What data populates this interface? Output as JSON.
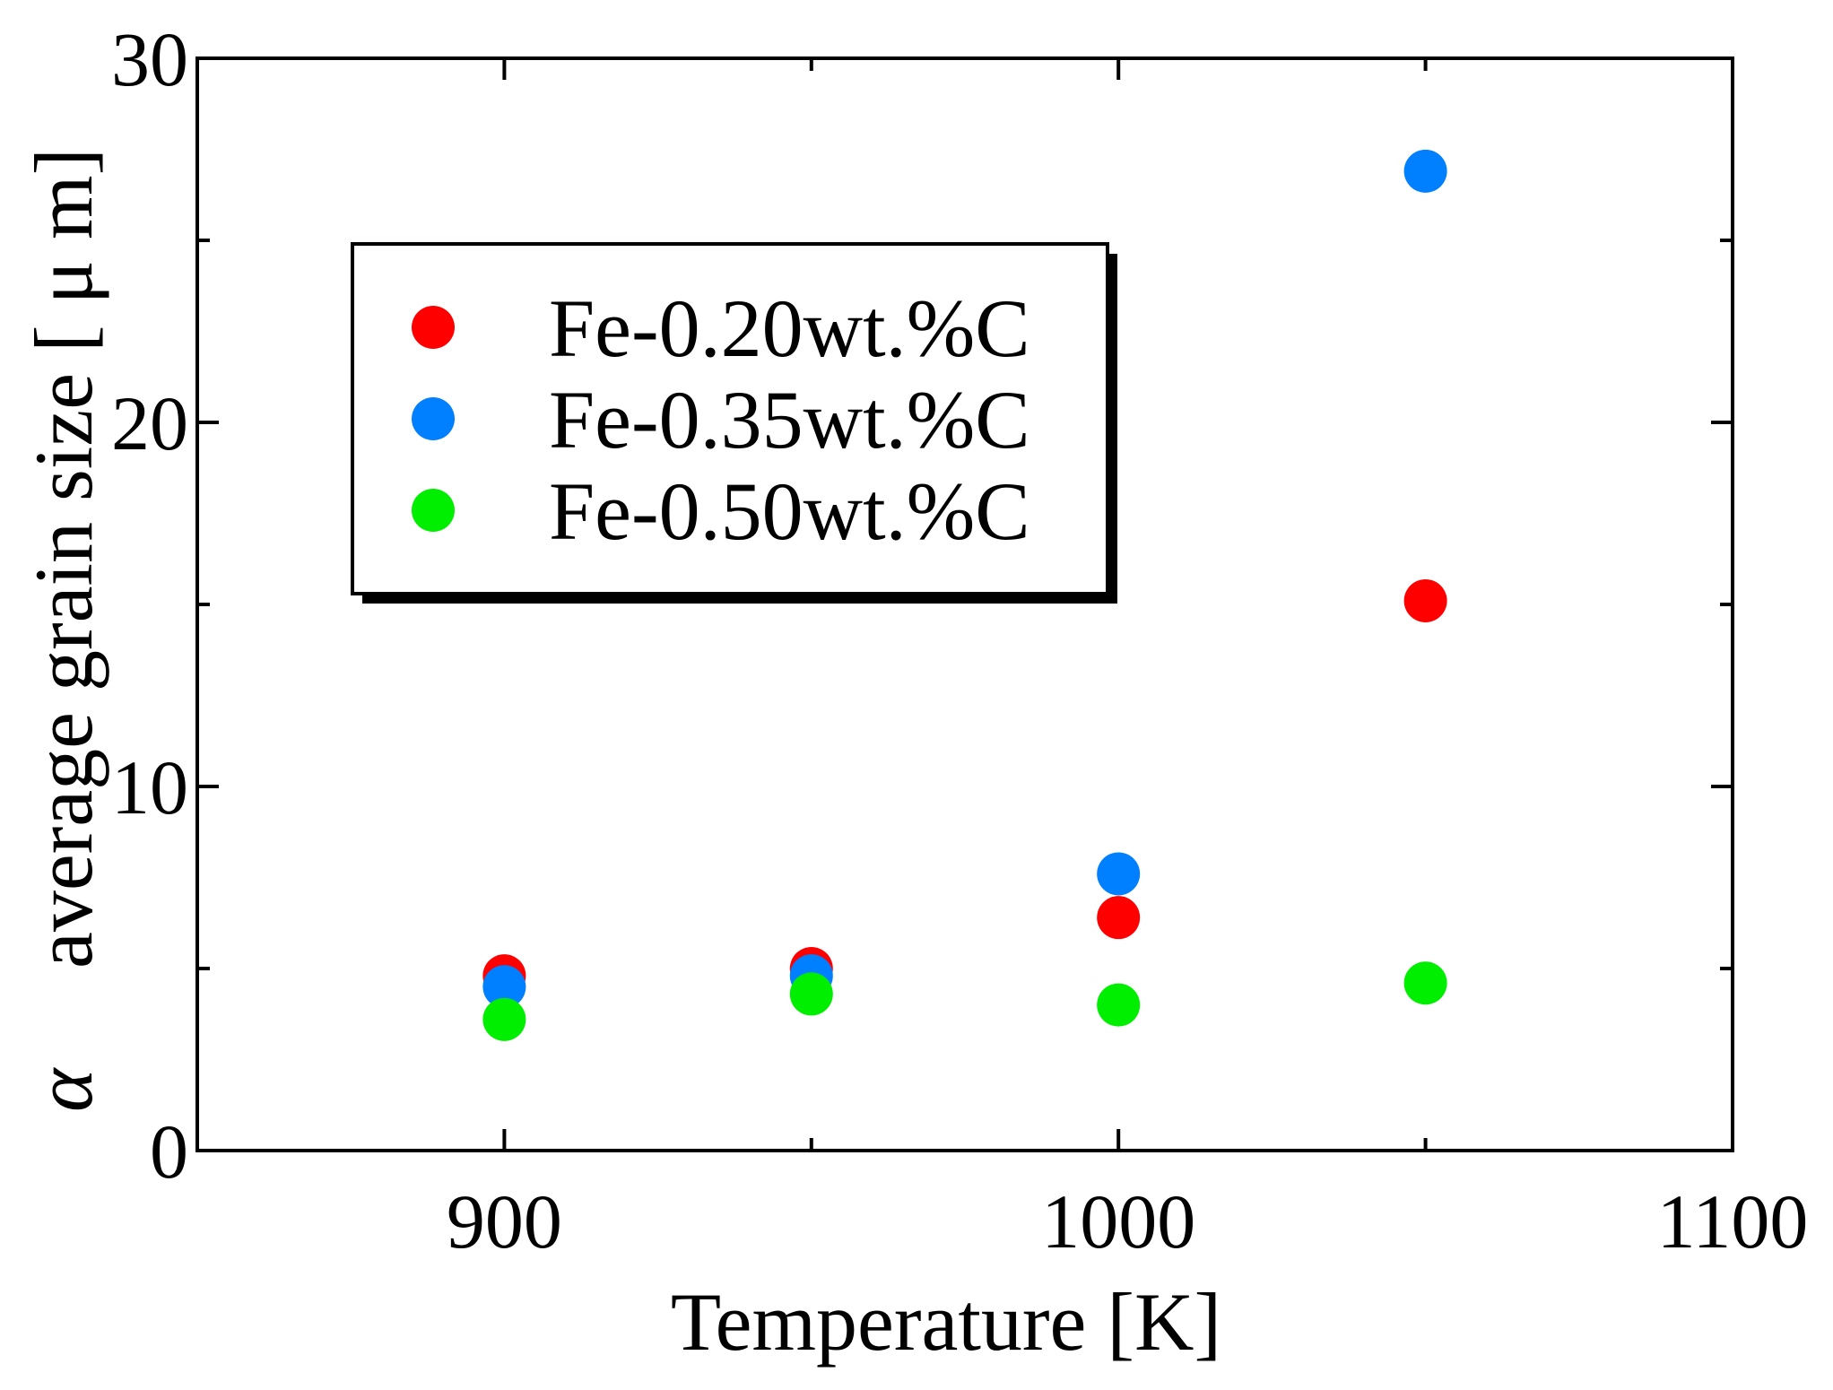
{
  "chart_data": {
    "type": "scatter",
    "title": "",
    "xlabel": "Temperature [K]",
    "ylabel": "average grain size [ μ m]",
    "ylabel_prefix": "α",
    "xlim": [
      850,
      1100
    ],
    "ylim": [
      0,
      30
    ],
    "x_ticks": [
      900,
      1000,
      1100
    ],
    "x_minor_ticks": [
      950,
      1050
    ],
    "y_ticks": [
      0,
      10,
      20,
      30
    ],
    "y_minor_ticks": [
      5,
      15,
      25
    ],
    "grid": false,
    "legend_position": "upper-left",
    "series": [
      {
        "name": "Fe-0.20wt.%C",
        "color": "#ff0000",
        "x": [
          900,
          950,
          1000,
          1050
        ],
        "y": [
          4.8,
          5.0,
          6.4,
          15.1
        ]
      },
      {
        "name": "Fe-0.35wt.%C",
        "color": "#0080ff",
        "x": [
          900,
          950,
          1000,
          1050
        ],
        "y": [
          4.5,
          4.8,
          7.6,
          26.9
        ]
      },
      {
        "name": "Fe-0.50wt.%C",
        "color": "#00ee00",
        "x": [
          900,
          950,
          1000,
          1050
        ],
        "y": [
          3.6,
          4.3,
          4.0,
          4.6
        ]
      }
    ]
  }
}
